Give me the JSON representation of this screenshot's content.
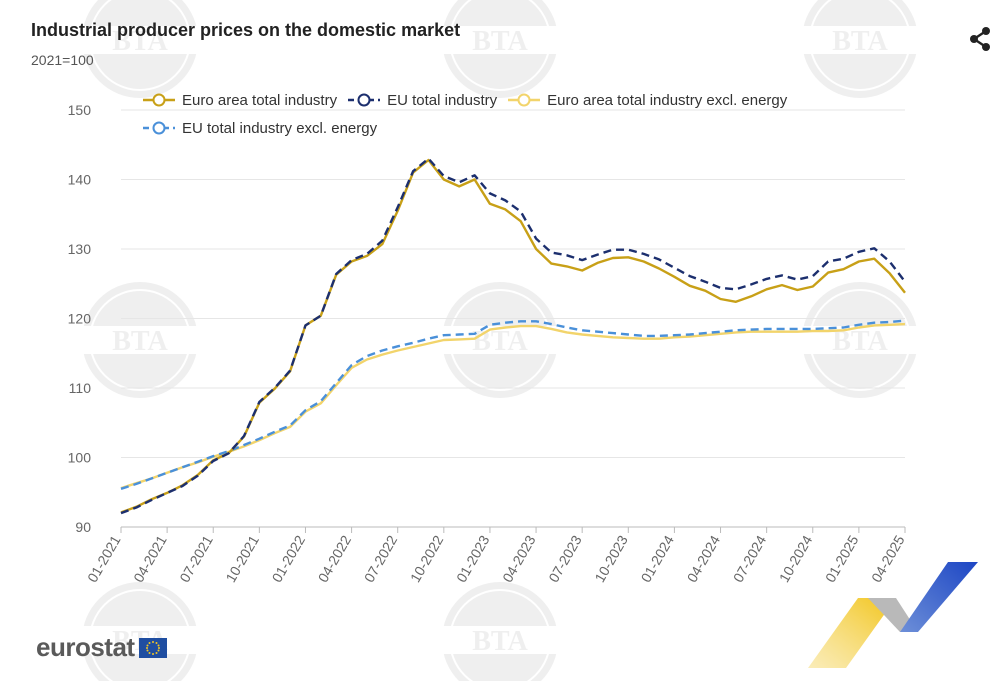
{
  "header": {
    "title": "Industrial producer prices on the domestic market",
    "subtitle": "2021=100"
  },
  "icons": {
    "share": "share-icon"
  },
  "watermark_text": "BTA",
  "footer": {
    "logo_text": "eurostat"
  },
  "colors": {
    "euro_area_total": "#c8a017",
    "eu_total": "#1c2f6e",
    "euro_area_excl_energy": "#f2d46b",
    "eu_excl_energy": "#4a90d9",
    "grid": "#e6e6e6",
    "axis_text": "#666666"
  },
  "chart_data": {
    "type": "line",
    "title": "Industrial producer prices on the domestic market",
    "subtitle": "2021=100",
    "xlabel": "",
    "ylabel": "",
    "ylim": [
      90,
      150
    ],
    "yticks": [
      90,
      100,
      110,
      120,
      130,
      140,
      150
    ],
    "grid": true,
    "legend_position": "top",
    "x": [
      "01-2021",
      "02-2021",
      "03-2021",
      "04-2021",
      "05-2021",
      "06-2021",
      "07-2021",
      "08-2021",
      "09-2021",
      "10-2021",
      "11-2021",
      "12-2021",
      "01-2022",
      "02-2022",
      "03-2022",
      "04-2022",
      "05-2022",
      "06-2022",
      "07-2022",
      "08-2022",
      "09-2022",
      "10-2022",
      "11-2022",
      "12-2022",
      "01-2023",
      "02-2023",
      "03-2023",
      "04-2023",
      "05-2023",
      "06-2023",
      "07-2023",
      "08-2023",
      "09-2023",
      "10-2023",
      "11-2023",
      "12-2023",
      "01-2024",
      "02-2024",
      "03-2024",
      "04-2024",
      "05-2024",
      "06-2024",
      "07-2024",
      "08-2024",
      "09-2024",
      "10-2024",
      "11-2024",
      "12-2024",
      "01-2025",
      "02-2025",
      "03-2025",
      "04-2025"
    ],
    "xticks": [
      "01-2021",
      "04-2021",
      "07-2021",
      "10-2021",
      "01-2022",
      "04-2022",
      "07-2022",
      "10-2022",
      "01-2023",
      "04-2023",
      "07-2023",
      "10-2023",
      "01-2024",
      "04-2024",
      "07-2024",
      "10-2024",
      "01-2025",
      "04-2025"
    ],
    "series": [
      {
        "name": "Euro area total industry",
        "dash": false,
        "values": [
          92.1,
          92.9,
          94.0,
          94.9,
          96.0,
          97.5,
          99.6,
          100.6,
          103.0,
          107.9,
          109.9,
          112.4,
          119.0,
          120.4,
          126.3,
          128.2,
          129.0,
          130.7,
          135.5,
          141.0,
          142.8,
          140.0,
          139.0,
          140.0,
          136.5,
          135.7,
          134.0,
          130.0,
          127.9,
          127.5,
          126.9,
          128.0,
          128.7,
          128.8,
          128.2,
          127.2,
          126.0,
          124.7,
          124.0,
          122.8,
          122.4,
          123.2,
          124.2,
          124.8,
          124.1,
          124.6,
          126.6,
          127.1,
          128.2,
          128.6,
          126.5,
          123.7
        ]
      },
      {
        "name": "EU total industry",
        "dash": true,
        "values": [
          92.0,
          92.8,
          93.9,
          94.9,
          95.9,
          97.4,
          99.5,
          100.6,
          103.1,
          108.0,
          110.0,
          112.5,
          119.0,
          120.4,
          126.4,
          128.4,
          129.3,
          131.2,
          136.0,
          141.2,
          143.0,
          140.5,
          139.6,
          140.6,
          138.0,
          137.0,
          135.4,
          131.5,
          129.5,
          129.1,
          128.4,
          129.2,
          129.9,
          129.9,
          129.3,
          128.5,
          127.3,
          126.1,
          125.3,
          124.4,
          124.2,
          124.9,
          125.7,
          126.2,
          125.6,
          126.1,
          128.2,
          128.6,
          129.6,
          130.1,
          128.2,
          125.3
        ]
      },
      {
        "name": "Euro area total industry excl. energy",
        "dash": false,
        "values": [
          95.6,
          96.3,
          97.0,
          97.8,
          98.6,
          99.3,
          100.1,
          100.8,
          101.6,
          102.5,
          103.5,
          104.4,
          106.6,
          107.8,
          110.4,
          112.9,
          114.1,
          114.8,
          115.4,
          115.9,
          116.4,
          116.9,
          117.0,
          117.1,
          118.4,
          118.7,
          118.9,
          118.9,
          118.5,
          118.0,
          117.7,
          117.5,
          117.3,
          117.2,
          117.1,
          117.1,
          117.3,
          117.4,
          117.6,
          117.8,
          118.0,
          118.1,
          118.1,
          118.1,
          118.1,
          118.2,
          118.2,
          118.3,
          118.7,
          119.0,
          119.1,
          119.2
        ]
      },
      {
        "name": "EU total industry excl. energy",
        "dash": true,
        "values": [
          95.5,
          96.2,
          97.0,
          97.8,
          98.6,
          99.4,
          100.2,
          100.9,
          101.8,
          102.7,
          103.7,
          104.6,
          106.8,
          108.1,
          110.7,
          113.3,
          114.6,
          115.4,
          116.0,
          116.5,
          117.1,
          117.6,
          117.7,
          117.8,
          119.1,
          119.4,
          119.6,
          119.6,
          119.2,
          118.7,
          118.3,
          118.1,
          117.9,
          117.7,
          117.5,
          117.5,
          117.6,
          117.7,
          117.9,
          118.1,
          118.3,
          118.4,
          118.5,
          118.5,
          118.5,
          118.5,
          118.6,
          118.7,
          119.1,
          119.4,
          119.5,
          119.7
        ]
      }
    ]
  }
}
